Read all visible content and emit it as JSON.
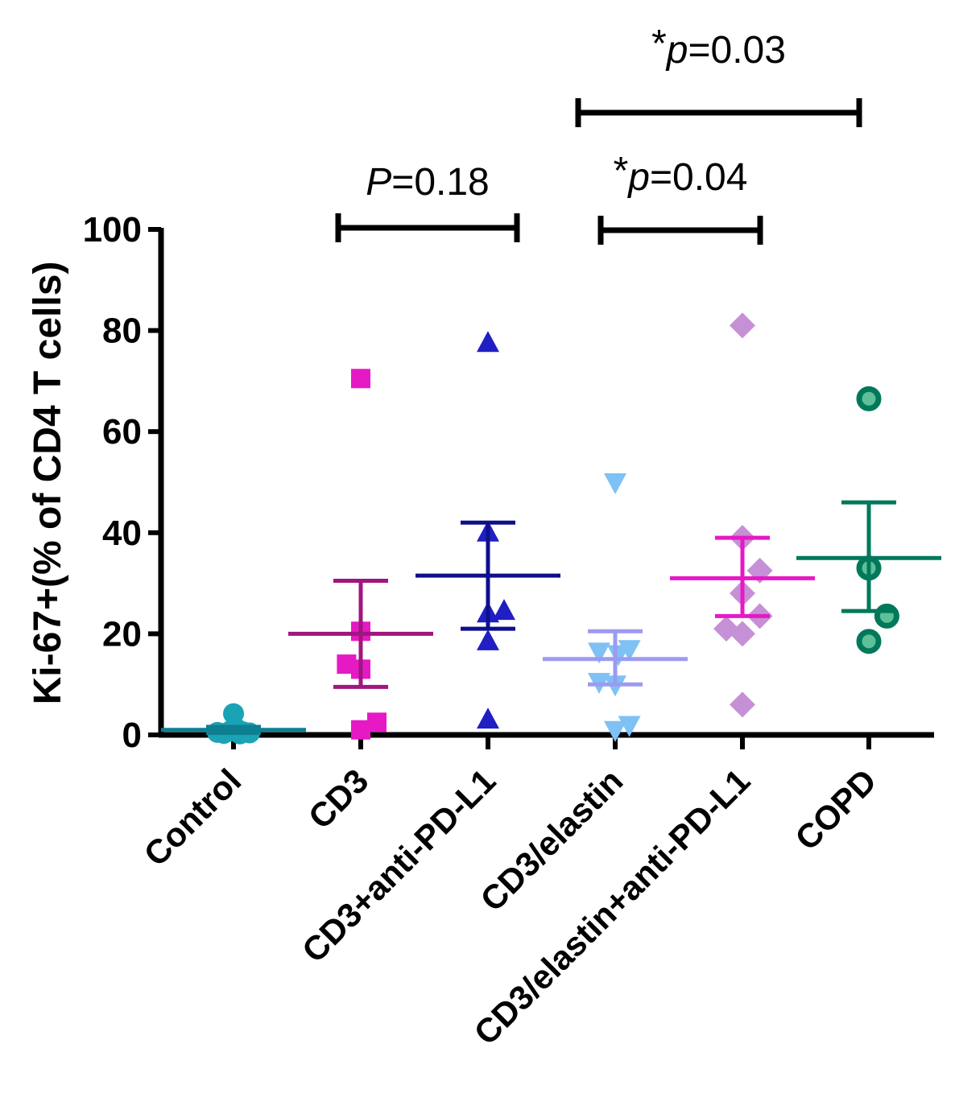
{
  "chart_data": {
    "type": "scatter",
    "ylabel": "Ki-67+(% of CD4 T cells)",
    "ylim": [
      0,
      100
    ],
    "yticks": [
      0,
      20,
      40,
      60,
      80,
      100
    ],
    "categories": [
      "Control",
      "CD3",
      "CD3+anti-PD-L1",
      "CD3/elastin",
      "CD3/elastin+anti-PD-L1",
      "COPD"
    ],
    "groups": [
      {
        "category": "Control",
        "marker": "circle",
        "color": "#1aa3b5",
        "bar_color": "#0e7f91",
        "points": [
          [
            -0.25,
            0.5
          ],
          [
            -0.15,
            0.3
          ],
          [
            -0.05,
            0.8
          ],
          [
            0.0,
            4.2
          ],
          [
            0.05,
            1.2
          ],
          [
            0.15,
            0.6
          ],
          [
            0.25,
            0.4
          ],
          [
            0.1,
            0.2
          ]
        ],
        "mean": 1.0,
        "sem_low": 0.4,
        "sem_high": 1.6
      },
      {
        "category": "CD3",
        "marker": "square",
        "color": "#e619c5",
        "bar_color": "#a0167f",
        "points": [
          [
            0.0,
            70.5
          ],
          [
            0.0,
            20.5
          ],
          [
            -0.22,
            14.0
          ],
          [
            0.0,
            13.0
          ],
          [
            0.25,
            2.5
          ],
          [
            0.0,
            1.0
          ]
        ],
        "mean": 20.0,
        "sem_low": 9.5,
        "sem_high": 30.5
      },
      {
        "category": "CD3+anti-PD-L1",
        "marker": "triangle-up",
        "color": "#1f1fc4",
        "bar_color": "#0f0f8c",
        "points": [
          [
            0.0,
            77.5
          ],
          [
            0.0,
            40.0
          ],
          [
            0.0,
            24.0
          ],
          [
            0.25,
            24.5
          ],
          [
            0.0,
            18.5
          ],
          [
            0.0,
            3.0
          ]
        ],
        "mean": 31.5,
        "sem_low": 21.0,
        "sem_high": 42.0
      },
      {
        "category": "CD3/elastin",
        "marker": "triangle-down",
        "color": "#7ec1f5",
        "bar_color": "#9b9bf0",
        "points": [
          [
            0.0,
            50.0
          ],
          [
            -0.25,
            16.5
          ],
          [
            0.05,
            16.0
          ],
          [
            0.22,
            17.0
          ],
          [
            -0.25,
            10.5
          ],
          [
            0.0,
            10.0
          ],
          [
            0.0,
            1.0
          ],
          [
            0.22,
            2.0
          ]
        ],
        "mean": 15.0,
        "sem_low": 10.0,
        "sem_high": 20.5
      },
      {
        "category": "CD3/elastin+anti-PD-L1",
        "marker": "diamond",
        "color": "#c690d6",
        "bar_color": "#e619c5",
        "points": [
          [
            0.0,
            81.0
          ],
          [
            0.0,
            39.0
          ],
          [
            0.27,
            32.5
          ],
          [
            0.0,
            28.0
          ],
          [
            -0.25,
            21.0
          ],
          [
            0.27,
            23.5
          ],
          [
            0.0,
            20.0
          ],
          [
            0.0,
            6.0
          ]
        ],
        "mean": 31.0,
        "sem_low": 23.5,
        "sem_high": 39.0
      },
      {
        "category": "COPD",
        "marker": "circle-open",
        "color": "#00785a",
        "bar_color": "#00785a",
        "points": [
          [
            0.0,
            66.5
          ],
          [
            0.0,
            33.0
          ],
          [
            0.28,
            23.5
          ],
          [
            0.0,
            18.5
          ]
        ],
        "mean": 35.0,
        "sem_low": 24.5,
        "sem_high": 46.0
      }
    ],
    "comparisons": [
      {
        "from": 1,
        "to": 2,
        "label_prefix": "",
        "label_italic": "P",
        "label_rest": "=0.18"
      },
      {
        "from": 3,
        "to": 4,
        "label_prefix": "*",
        "label_italic": "p",
        "label_rest": "=0.04"
      },
      {
        "from": 3,
        "to": 5,
        "label_prefix": "*",
        "label_italic": "p",
        "label_rest": "=0.03"
      }
    ]
  }
}
